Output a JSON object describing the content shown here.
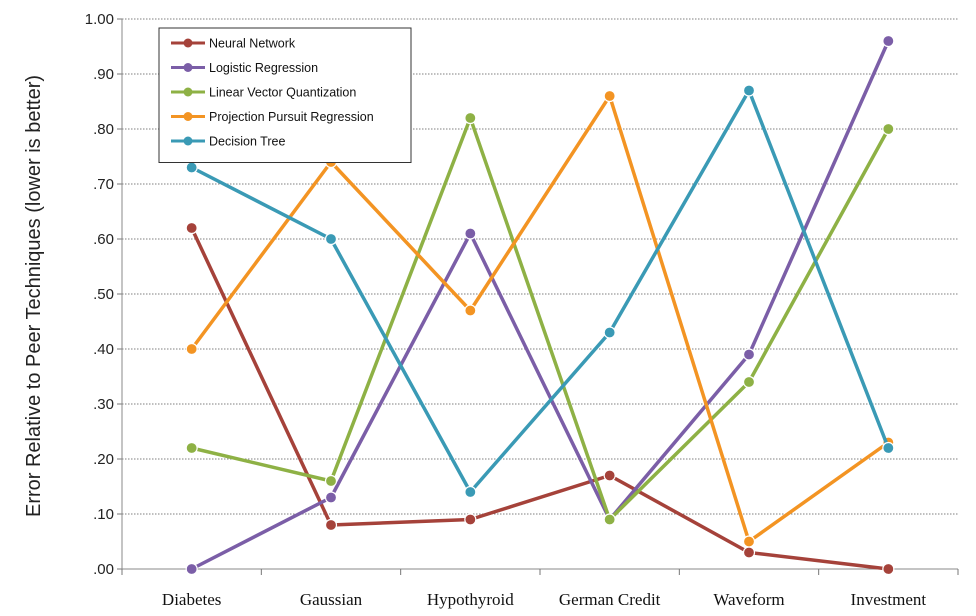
{
  "chart_data": {
    "type": "line",
    "title": "",
    "xlabel": "",
    "ylabel": "Error Relative to Peer Techniques (lower is better)",
    "categories": [
      "Diabetes",
      "Gaussian",
      "Hypothyroid",
      "German Credit",
      "Waveform",
      "Investment"
    ],
    "ylim": [
      0,
      1
    ],
    "yticks": [
      {
        "value": 0.0,
        "label": ".00"
      },
      {
        "value": 0.1,
        "label": ".10"
      },
      {
        "value": 0.2,
        "label": ".20"
      },
      {
        "value": 0.3,
        "label": ".30"
      },
      {
        "value": 0.4,
        "label": ".40"
      },
      {
        "value": 0.5,
        "label": ".50"
      },
      {
        "value": 0.6,
        "label": ".60"
      },
      {
        "value": 0.7,
        "label": ".70"
      },
      {
        "value": 0.8,
        "label": ".80"
      },
      {
        "value": 0.9,
        "label": ".90"
      },
      {
        "value": 1.0,
        "label": "1.00"
      }
    ],
    "grid": true,
    "legend": "top-left",
    "series": [
      {
        "name": "Neural Network",
        "color": "#a5423a",
        "values": [
          0.62,
          0.08,
          0.09,
          0.17,
          0.03,
          0.0
        ]
      },
      {
        "name": "Logistic Regression",
        "color": "#7b5ea7",
        "values": [
          0.0,
          0.13,
          0.61,
          0.09,
          0.39,
          0.96
        ]
      },
      {
        "name": "Linear Vector Quantization",
        "color": "#8eb145",
        "values": [
          0.22,
          0.16,
          0.82,
          0.09,
          0.34,
          0.8
        ]
      },
      {
        "name": "Projection Pursuit Regression",
        "color": "#f39423",
        "values": [
          0.4,
          0.74,
          0.47,
          0.86,
          0.05,
          0.23
        ]
      },
      {
        "name": "Decision Tree",
        "color": "#3a9ab5",
        "values": [
          0.73,
          0.6,
          0.14,
          0.43,
          0.87,
          0.22
        ]
      }
    ]
  }
}
